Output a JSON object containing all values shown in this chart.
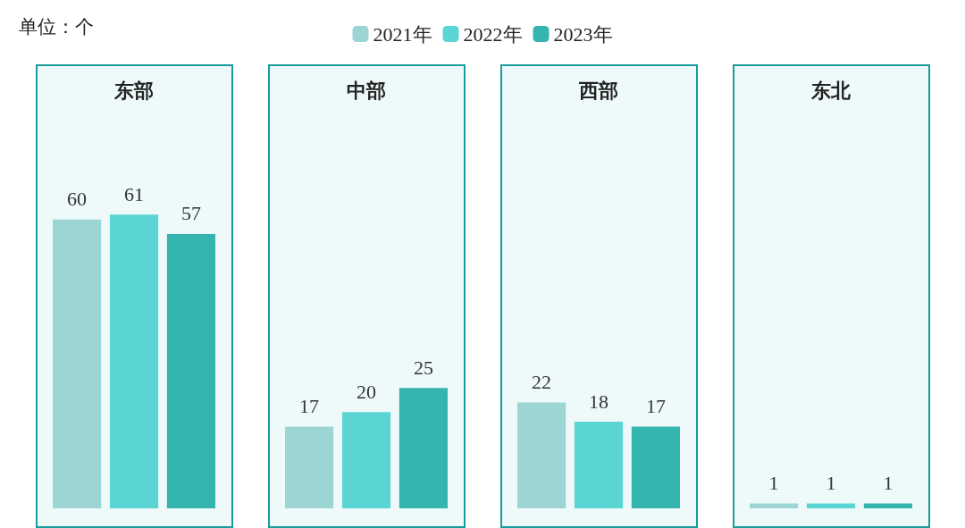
{
  "chart_data": {
    "type": "bar",
    "ylabel": "单位：个",
    "categories": [
      "东部",
      "中部",
      "西部",
      "东北"
    ],
    "series": [
      {
        "name": "2021年",
        "color": "#9dd5d5",
        "values": [
          60,
          17,
          22,
          1
        ]
      },
      {
        "name": "2022年",
        "color": "#5ad5d3",
        "values": [
          61,
          20,
          18,
          1
        ]
      },
      {
        "name": "2023年",
        "color": "#35b5b0",
        "values": [
          57,
          25,
          17,
          1
        ]
      }
    ],
    "data_labels": true,
    "legend": "top"
  }
}
